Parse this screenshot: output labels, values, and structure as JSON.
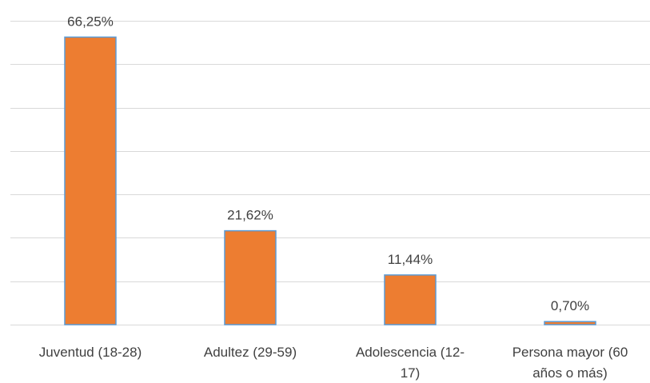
{
  "chart_data": {
    "type": "bar",
    "categories": [
      [
        "Juventud (18-28)"
      ],
      [
        "Adultez (29-59)"
      ],
      [
        "Adolescencia (12-",
        "17)"
      ],
      [
        "Persona mayor (60",
        "años o más)"
      ]
    ],
    "values": [
      66.25,
      21.62,
      11.44,
      0.7
    ],
    "data_labels": [
      "66,25%",
      "21,62%",
      "11,44%",
      "0,70%"
    ],
    "ylim": [
      0,
      70
    ],
    "grid": true,
    "bar_color": "#ed7d31",
    "bar_edge_color": "#5b9bd5",
    "title": "",
    "xlabel": "",
    "ylabel": ""
  }
}
